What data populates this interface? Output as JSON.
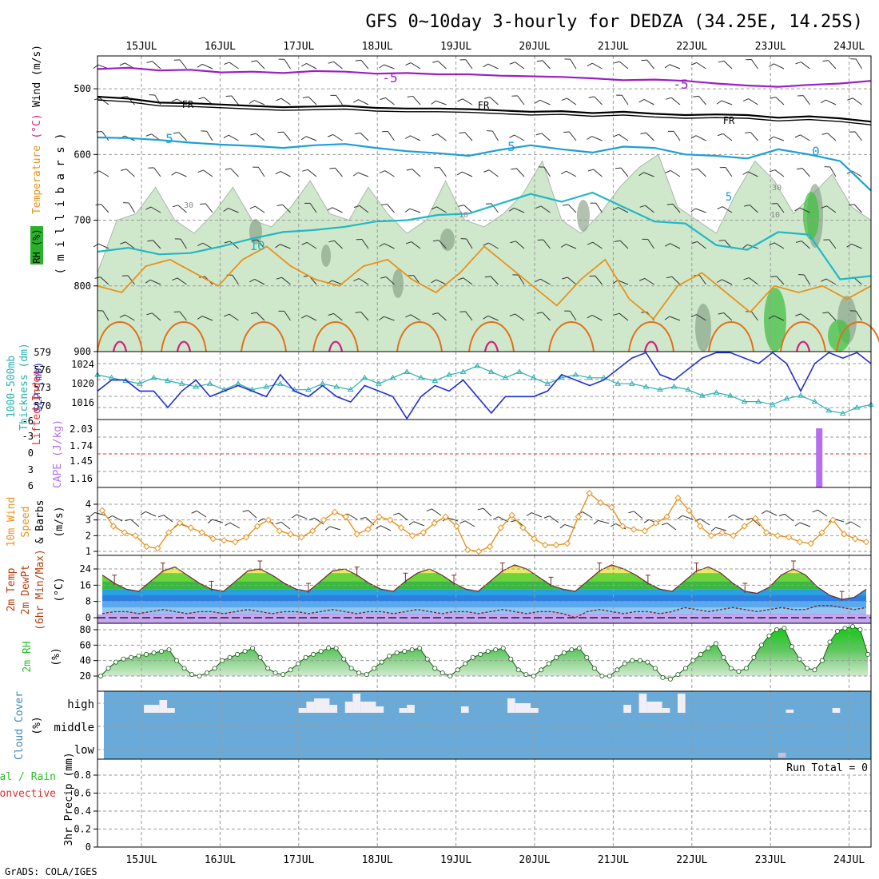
{
  "title": "GFS 0~10day 3-hourly for DEDZA (34.25E, 14.25S)",
  "credit": "GrADS: COLA/IGES",
  "dates": [
    "15JUL",
    "16JUL",
    "17JUL",
    "18JUL",
    "19JUL",
    "20JUL",
    "21JUL",
    "22JUL",
    "23JUL",
    "24JUL"
  ],
  "colors": {
    "grid": "#9a9a9a",
    "axis": "#000000",
    "rh": "#cfe8cc",
    "rh_dark": "#7d9a7d",
    "rh_green": "#44c044",
    "temp_purple": "#9b1fc2",
    "temp_cyan": "#1b9fd6",
    "temp_teal": "#20b8c4",
    "temp_orange": "#e8921c",
    "temp_dkorange": "#e0701c",
    "temp_magenta": "#d0207f",
    "slp": "#1f2fd0",
    "thickness": "#2ab0b0",
    "cape": "#b46ef0",
    "li_zero": "#e03030",
    "wind10": "#e8921c",
    "cloud": "#6aaad8",
    "rh2m": "#2bbf2b"
  },
  "chart_data": [
    {
      "type": "area",
      "name": "upper-air",
      "ylabel_parts": [
        "RH (%)",
        "Temperature",
        "(°C)",
        "Wind (m/s)"
      ],
      "yunit_label": "( m i l l i b a r s )",
      "ylim": [
        900,
        450
      ],
      "yticks": [
        500,
        600,
        700,
        800,
        900
      ],
      "contour_labels": [
        "-5",
        "-5",
        "FR",
        "FR",
        "FR",
        "5",
        "5",
        "5",
        "0",
        "10",
        "10",
        "10",
        "30",
        "30"
      ],
      "isotherms": [
        {
          "label": "-5",
          "color": "purple",
          "values": [
            470,
            468,
            472,
            471,
            475,
            474,
            476,
            473,
            474,
            477,
            476,
            478,
            478,
            480,
            481,
            482,
            484,
            487,
            486,
            488,
            492,
            495,
            497,
            494,
            492,
            488
          ]
        },
        {
          "label": "FR",
          "color": "black",
          "values": [
            512,
            515,
            521,
            522,
            524,
            526,
            528,
            527,
            526,
            529,
            530,
            530,
            531,
            533,
            535,
            534,
            537,
            535,
            538,
            540,
            539,
            540,
            544,
            542,
            545,
            550
          ]
        },
        {
          "label": "5",
          "color": "cyan",
          "values": [
            574,
            575,
            578,
            582,
            585,
            587,
            590,
            586,
            584,
            590,
            595,
            598,
            602,
            593,
            586,
            592,
            597,
            588,
            590,
            600,
            602,
            606,
            592,
            600,
            610,
            655
          ]
        },
        {
          "label": "10",
          "color": "teal",
          "values": [
            748,
            742,
            752,
            750,
            740,
            728,
            718,
            715,
            710,
            702,
            700,
            692,
            690,
            675,
            660,
            672,
            658,
            680,
            702,
            705,
            738,
            745,
            718,
            722,
            790,
            785
          ]
        }
      ]
    },
    {
      "type": "line",
      "name": "slp-thickness",
      "ylabel_left": "1000-500mb Thickness (dm)",
      "ylabel_right": "SLP (mb)",
      "left_ticks": [
        "579",
        "576",
        "573",
        "570"
      ],
      "right_ticks": [
        "1024",
        "1020",
        "1016"
      ],
      "series": [
        {
          "name": "SLP (mb)",
          "values": [
            1019,
            1021,
            1021,
            1019,
            1019,
            1016,
            1019,
            1021,
            1018,
            1019,
            1020,
            1019,
            1018,
            1022,
            1019,
            1018,
            1020,
            1018,
            1017,
            1020,
            1019,
            1018,
            1014,
            1018,
            1020,
            1019,
            1021,
            1018,
            1015,
            1018,
            1018,
            1018,
            1019,
            1022,
            1021,
            1020,
            1021,
            1023,
            1025,
            1026,
            1022,
            1021,
            1023,
            1025,
            1026,
            1026,
            1025,
            1024,
            1026,
            1024,
            1019,
            1024,
            1026,
            1025,
            1026,
            1024
          ]
        },
        {
          "name": "1000-500mb Thickness (dm)",
          "values": [
            575.5,
            575,
            574.5,
            574,
            575,
            574.5,
            574,
            573.5,
            574,
            573,
            574,
            573,
            573.5,
            574,
            573,
            573,
            574,
            573.5,
            573,
            575,
            574,
            575,
            576,
            575,
            574.5,
            575.5,
            576,
            577,
            576,
            575,
            576,
            575,
            574,
            575,
            575.5,
            575,
            575,
            574,
            574,
            573.5,
            573,
            573.5,
            573,
            572,
            572.5,
            572,
            571,
            571,
            570.5,
            571.5,
            572,
            571,
            569.5,
            569,
            570,
            570.5
          ]
        }
      ]
    },
    {
      "type": "bar",
      "name": "cape-li",
      "ylabel_left": "Lifted Index",
      "ylabel_right": "CAPE (J/kg)",
      "left_ticks": [
        "-6",
        "-3",
        "0",
        "3",
        "6"
      ],
      "right_ticks": [
        "2.03",
        "1.74",
        "1.45",
        "1.16"
      ],
      "cape_bar": {
        "date_index": 8.62,
        "value": 2.03
      }
    },
    {
      "type": "line",
      "name": "wind10m",
      "ylabel_lines": [
        "10m Wind",
        "Speed",
        "& Barbs"
      ],
      "yunit": "(m/s)",
      "yticks": [
        "4",
        "3",
        "2",
        "1"
      ],
      "ylim": [
        1,
        4.8
      ],
      "series": [
        {
          "name": "10m Wind Speed",
          "values": [
            3.6,
            2.6,
            2.2,
            2.0,
            1.3,
            1.2,
            2.2,
            2.8,
            2.5,
            2.2,
            1.8,
            1.7,
            1.6,
            1.9,
            2.6,
            3.0,
            2.3,
            2.1,
            1.9,
            2.3,
            3.0,
            3.5,
            3.2,
            2.1,
            2.4,
            3.2,
            3.0,
            2.5,
            2.0,
            2.2,
            2.8,
            3.2,
            2.6,
            1.1,
            1.0,
            1.3,
            2.5,
            3.3,
            2.5,
            1.8,
            1.4,
            1.4,
            1.5,
            3.2,
            4.7,
            4.1,
            3.8,
            2.6,
            2.4,
            2.3,
            2.8,
            3.2,
            4.4,
            3.6,
            2.6,
            2.0,
            2.2,
            2.0,
            2.6,
            3.1,
            2.2,
            2.0,
            1.9,
            1.6,
            1.5,
            2.2,
            3.0,
            2.1,
            1.8,
            1.6
          ]
        }
      ]
    },
    {
      "type": "area",
      "name": "temperature",
      "ylabel_lines": [
        "2m Temp",
        "2m DewPt",
        "(6hr Min/Max)"
      ],
      "yunit": "(°C)",
      "yticks": [
        "24",
        "16",
        "8",
        "0"
      ],
      "ylim": [
        0,
        28
      ],
      "series": [
        {
          "name": "2m Temp",
          "values": [
            21,
            17,
            14,
            13,
            18,
            23,
            25,
            21,
            17,
            14,
            13,
            18,
            23,
            24,
            21,
            17,
            14,
            13,
            18,
            23,
            24,
            21,
            17,
            14,
            13,
            18,
            22,
            24,
            21,
            17,
            14,
            13,
            18,
            23,
            26,
            24,
            20,
            16,
            14,
            13,
            18,
            23,
            26,
            24,
            21,
            17,
            14,
            13,
            18,
            23,
            25,
            22,
            17,
            13,
            12,
            15,
            21,
            24,
            21,
            15,
            11,
            9,
            10,
            14
          ]
        },
        {
          "name": "2m DewPt",
          "values": [
            2,
            3,
            3,
            2,
            3,
            4,
            3,
            2,
            3,
            3,
            2,
            3,
            4,
            3,
            2,
            3,
            3,
            2,
            3,
            4,
            3,
            2,
            3,
            3,
            2,
            3,
            4,
            3,
            2,
            3,
            3,
            2,
            3,
            4,
            3,
            2,
            3,
            3,
            2,
            0,
            3,
            4,
            3,
            2,
            3,
            3,
            2,
            3,
            5,
            4,
            3,
            4,
            5,
            4,
            3,
            4,
            5,
            4,
            4,
            6,
            6,
            5,
            4,
            5
          ]
        }
      ]
    },
    {
      "type": "area",
      "name": "rh2m",
      "ylabel": "2m RH",
      "yunit": "(%)",
      "yticks": [
        "80",
        "60",
        "40",
        "20"
      ],
      "ylim": [
        20,
        80
      ],
      "series": [
        {
          "name": "2m RH",
          "values": [
            20,
            30,
            38,
            42,
            44,
            46,
            48,
            50,
            52,
            54,
            40,
            30,
            22,
            20,
            24,
            30,
            40,
            44,
            48,
            52,
            56,
            44,
            30,
            24,
            22,
            28,
            36,
            44,
            48,
            52,
            56,
            56,
            42,
            30,
            24,
            22,
            30,
            38,
            46,
            50,
            52,
            54,
            56,
            42,
            30,
            24,
            20,
            28,
            36,
            44,
            48,
            52,
            54,
            56,
            42,
            28,
            22,
            20,
            28,
            36,
            44,
            50,
            54,
            56,
            44,
            30,
            20,
            20,
            28,
            36,
            40,
            40,
            38,
            30,
            18,
            16,
            22,
            30,
            40,
            48,
            56,
            62,
            44,
            30,
            26,
            30,
            44,
            60,
            72,
            80,
            82,
            58,
            42,
            30,
            28,
            40,
            64,
            78,
            82,
            84,
            80,
            48
          ]
        }
      ]
    },
    {
      "type": "heatmap",
      "name": "cloud-cover",
      "ylabel": "Cloud Cover",
      "yunit": "(%)",
      "levels": [
        "high",
        "middle",
        "low"
      ],
      "high_gaps": [
        [
          0.06,
          0.08,
          1
        ],
        [
          0.08,
          0.09,
          1.6
        ],
        [
          0.09,
          0.1,
          0.6
        ],
        [
          0.26,
          0.27,
          0.6
        ],
        [
          0.27,
          0.28,
          1.4
        ],
        [
          0.28,
          0.3,
          1.8
        ],
        [
          0.3,
          0.31,
          1.0
        ],
        [
          0.32,
          0.33,
          1.4
        ],
        [
          0.33,
          0.34,
          2.4
        ],
        [
          0.34,
          0.36,
          1.4
        ],
        [
          0.36,
          0.37,
          0.8
        ],
        [
          0.39,
          0.4,
          0.6
        ],
        [
          0.4,
          0.41,
          1.0
        ],
        [
          0.47,
          0.48,
          0.8
        ],
        [
          0.53,
          0.54,
          1.8
        ],
        [
          0.54,
          0.56,
          1.2
        ],
        [
          0.56,
          0.57,
          0.6
        ],
        [
          0.68,
          0.69,
          1.0
        ],
        [
          0.7,
          0.71,
          2.4
        ],
        [
          0.71,
          0.73,
          1.4
        ],
        [
          0.73,
          0.74,
          0.6
        ],
        [
          0.75,
          0.76,
          2.4
        ],
        [
          0.89,
          0.9,
          0.4
        ],
        [
          0.95,
          0.96,
          0.6
        ]
      ],
      "low_gap": [
        0.88,
        0.89
      ]
    },
    {
      "type": "bar",
      "name": "precip",
      "ylabel_left": [
        "Total / Rain",
        "Convective"
      ],
      "ylabel": "3hr Precip (mm)",
      "yticks": [
        "0.8",
        "0.6",
        "0.4",
        "0.2",
        "0"
      ],
      "ylim": [
        0,
        1
      ],
      "run_total": "Run Total = 0",
      "values": []
    }
  ]
}
